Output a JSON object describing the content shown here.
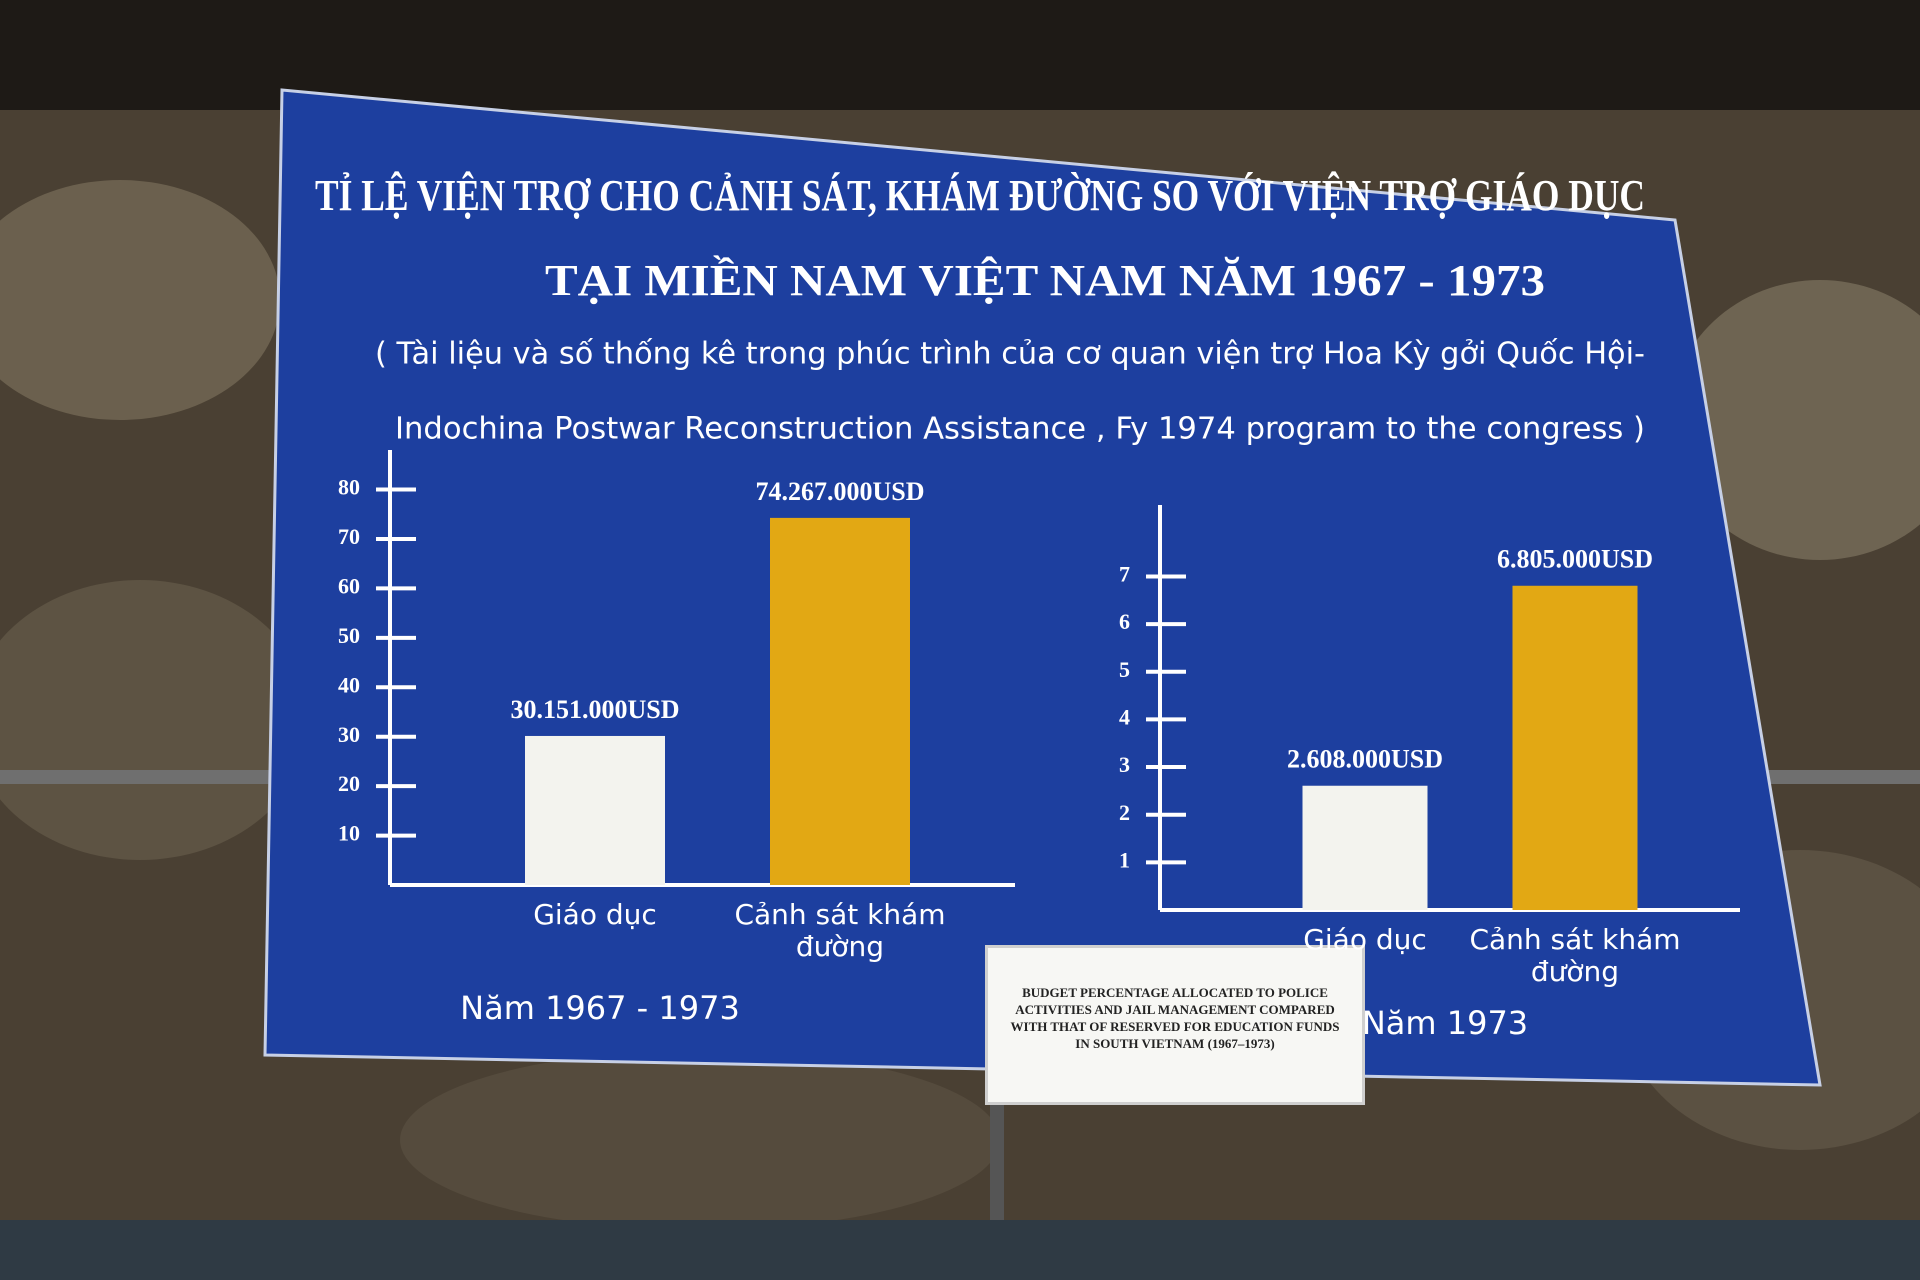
{
  "title": [
    "TỈ LỆ VIỆN TRỢ CHO CẢNH SÁT, KHÁM ĐƯỜNG SO VỚI VIỆN TRỢ GIÁO DỤC",
    "TẠI MIỀN NAM VIỆT NAM NĂM 1967 - 1973"
  ],
  "subtitle": [
    "( Tài liệu và số thống kê trong phúc trình của cơ quan viện trợ Hoa Kỳ gởi Quốc Hội-",
    "Indochina Postwar Reconstruction Assistance , Fy 1974 program to the congress )"
  ],
  "note": "BUDGET PERCENTAGE ALLOCATED TO POLICE ACTIVITIES AND JAIL MANAGEMENT COMPARED WITH THAT OF RESERVED FOR EDUCATION FUNDS IN SOUTH VIETNAM (1967–1973)",
  "chart_data": [
    {
      "type": "bar",
      "categories": [
        "Giáo dục",
        "Cảnh sát khám đường"
      ],
      "values": [
        30.151,
        74.267
      ],
      "value_labels": [
        "30.151.000USD",
        "74.267.000USD"
      ],
      "colors": [
        "#f3f3ee",
        "#e2a814"
      ],
      "ylim": [
        0,
        88
      ],
      "yticks": [
        10,
        20,
        30,
        40,
        50,
        60,
        70,
        80
      ],
      "xlabel": "Năm 1967 - 1973"
    },
    {
      "type": "bar",
      "categories": [
        "Giáo dục",
        "Cảnh sát khám đường"
      ],
      "values": [
        2.608,
        6.805
      ],
      "value_labels": [
        "2.608.000USD",
        "6.805.000USD"
      ],
      "colors": [
        "#f3f3ee",
        "#e2a814"
      ],
      "ylim": [
        0,
        8.5
      ],
      "yticks": [
        1,
        2,
        3,
        4,
        5,
        6,
        7
      ],
      "xlabel": "Năm 1973"
    }
  ]
}
